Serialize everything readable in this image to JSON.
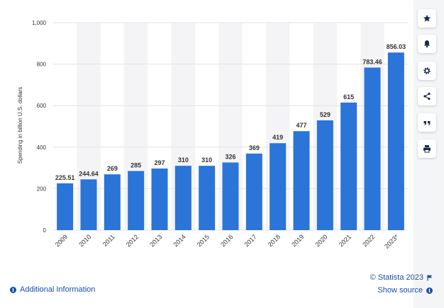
{
  "chart_data": {
    "type": "bar",
    "ylabel": "Spending in billion U.S. dollars",
    "xlabel": "",
    "ylim": [
      0,
      1000
    ],
    "yticks": [
      0,
      200,
      400,
      600,
      800,
      1000
    ],
    "ytick_labels": [
      "0",
      "200",
      "400",
      "600",
      "800",
      "1,000"
    ],
    "categories": [
      "2009",
      "2010",
      "2011",
      "2012",
      "2013",
      "2014",
      "2015",
      "2016",
      "2017",
      "2018",
      "2019",
      "2020",
      "2021",
      "2022",
      "2023*"
    ],
    "values": [
      225.51,
      244.64,
      269,
      285,
      297,
      310,
      310,
      326,
      369,
      419,
      477,
      529,
      615,
      783.46,
      856.03
    ],
    "value_labels": [
      "225.51",
      "244.64",
      "269",
      "285",
      "297",
      "310",
      "310",
      "326",
      "369",
      "419",
      "477",
      "529",
      "615",
      "783.46",
      "856.03"
    ],
    "bar_color": "#2b74d8",
    "grid": true,
    "legend": "none"
  },
  "toolbar": {
    "items": [
      {
        "name": "favorite",
        "icon": "star-icon"
      },
      {
        "name": "notification",
        "icon": "bell-icon"
      },
      {
        "name": "settings",
        "icon": "gear-icon"
      },
      {
        "name": "share",
        "icon": "share-icon"
      },
      {
        "name": "cite",
        "icon": "quote-icon"
      },
      {
        "name": "print",
        "icon": "print-icon"
      }
    ]
  },
  "footer": {
    "copyright": "© Statista 2023",
    "show_source": "Show source",
    "additional_info": "Additional Information"
  },
  "colors": {
    "accent": "#1a4fa0",
    "bar": "#2b74d8",
    "band": "#f4f4f6"
  }
}
